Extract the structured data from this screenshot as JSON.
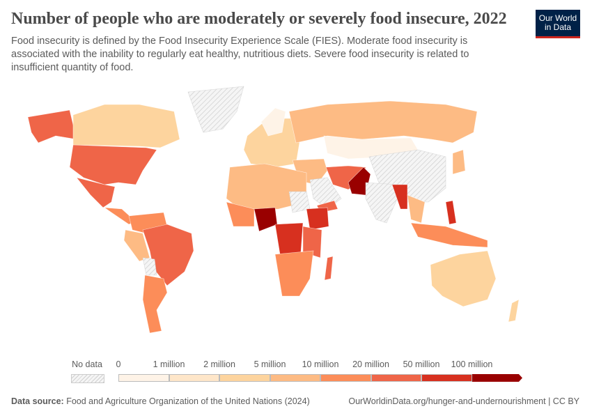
{
  "header": {
    "title": "Number of people who are moderately or severely food insecure, 2022",
    "subtitle": "Food insecurity is defined by the Food Insecurity Experience Scale (FIES). Moderate food insecurity is associated with the inability to regularly eat healthy, nutritious diets. Severe food insecurity is related to insufficient quantity of food.",
    "logo": "Our World in Data"
  },
  "legend": {
    "no_data": "No data",
    "bins": [
      "0",
      "1 million",
      "2 million",
      "5 million",
      "10 million",
      "20 million",
      "50 million",
      "100 million"
    ],
    "colors": [
      "#fef3e7",
      "#fee6c9",
      "#fdd49e",
      "#fdbb84",
      "#fc8d59",
      "#ef6548",
      "#d7301f",
      "#990000"
    ],
    "no_data_color": "#e6e6e6"
  },
  "footer": {
    "source_label": "Data source:",
    "source": "Food and Agriculture Organization of the United Nations (2024)",
    "url": "OurWorldinData.org/hunger-and-undernourishment | CC BY"
  }
}
